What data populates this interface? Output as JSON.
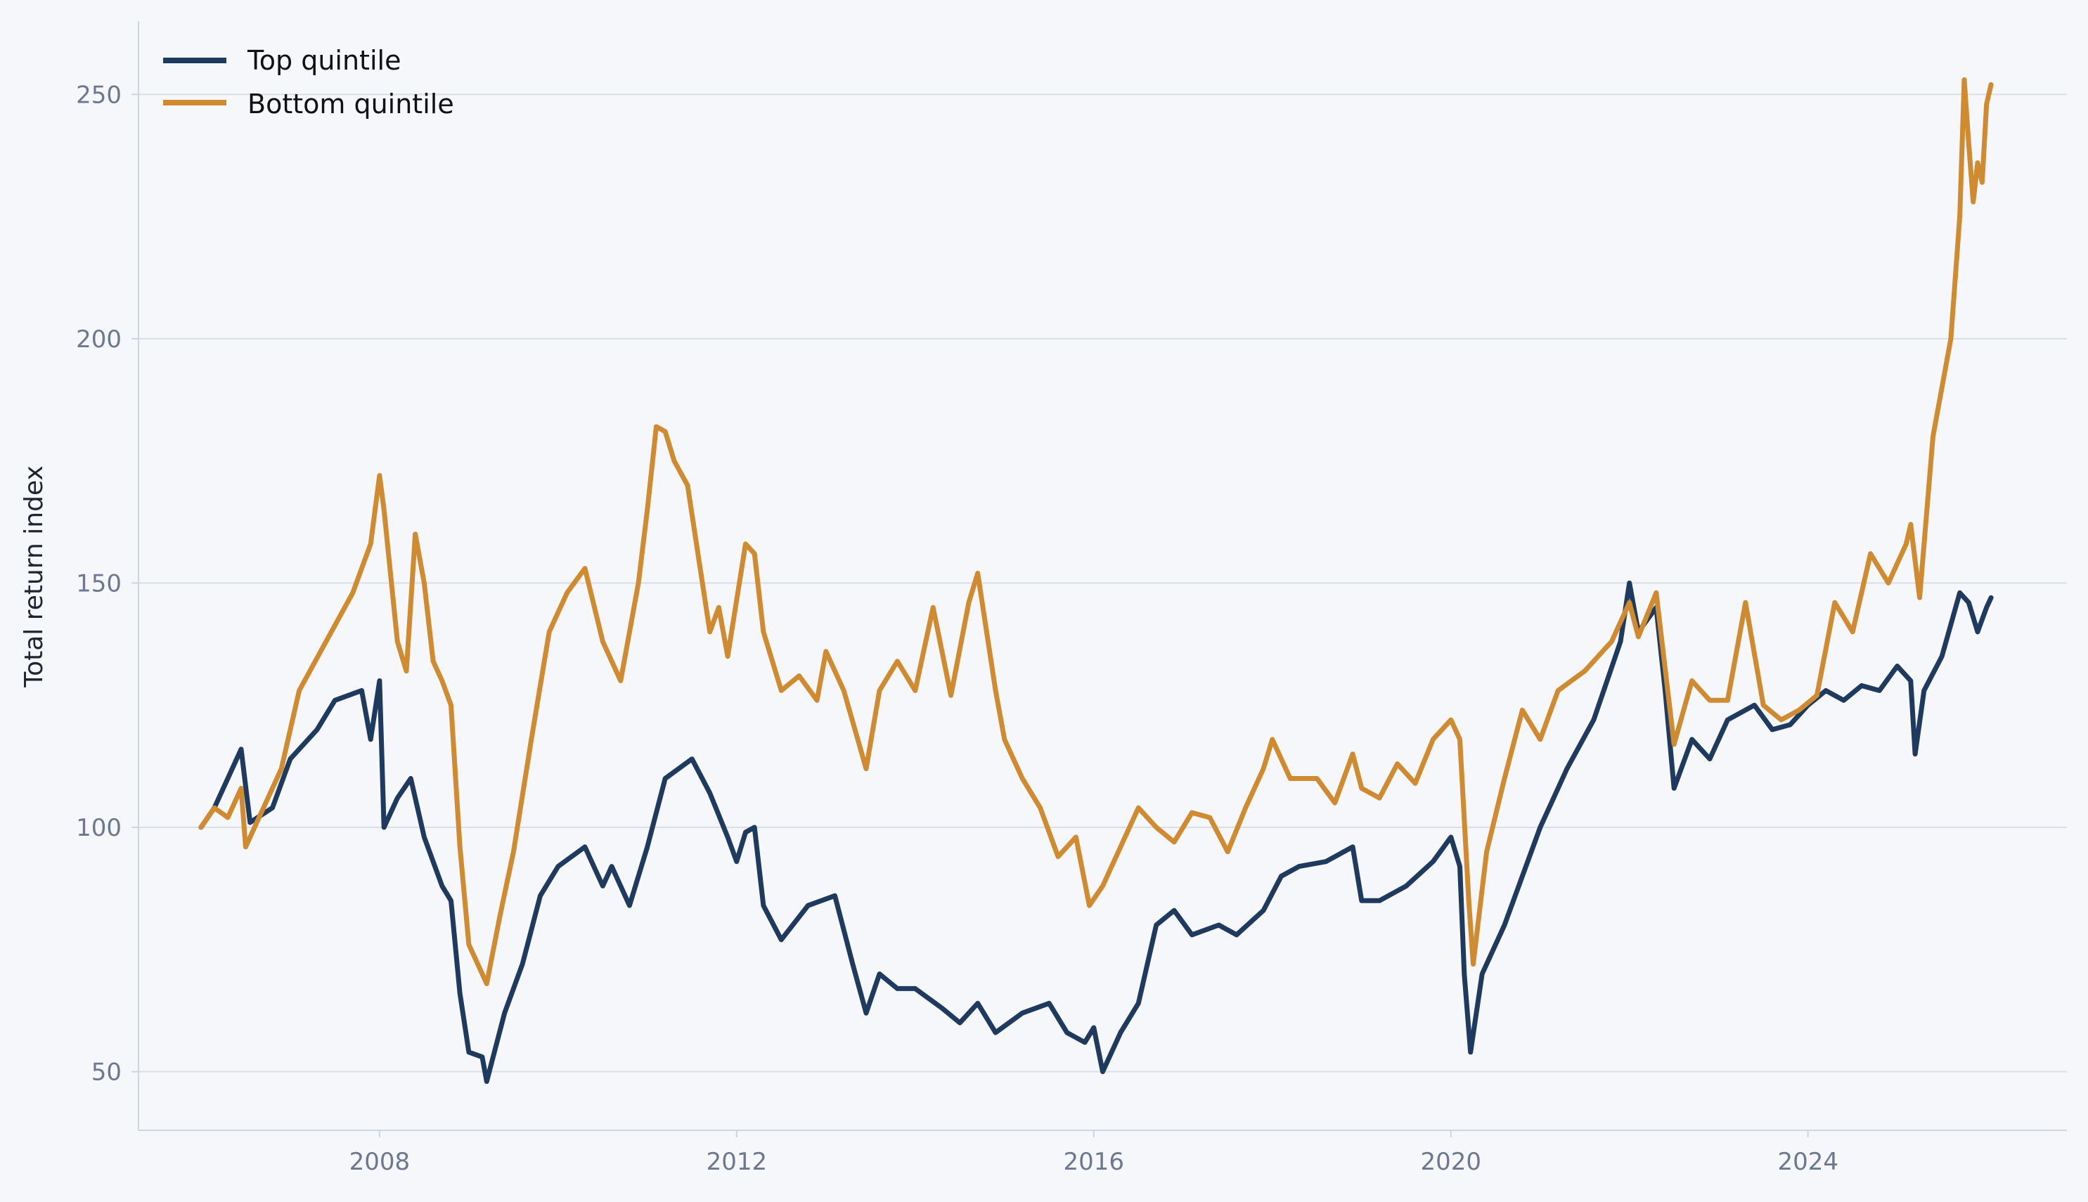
{
  "chart_data": {
    "type": "line",
    "title": "",
    "xlabel": "",
    "ylabel": "Total return index",
    "xlim": [
      2005.3,
      2026.9
    ],
    "ylim": [
      38,
      265
    ],
    "x_ticks": [
      2008,
      2012,
      2016,
      2020,
      2024
    ],
    "x_tick_labels": [
      "2008",
      "2012",
      "2016",
      "2020",
      "2024"
    ],
    "y_ticks": [
      50,
      100,
      150,
      200,
      250
    ],
    "y_tick_labels": [
      "50",
      "100",
      "150",
      "200",
      "250"
    ],
    "grid": "horizontal",
    "legend": "top-left",
    "series": [
      {
        "name": "Top quintile",
        "color": "#1f3a5f",
        "points": [
          [
            2006.0,
            100
          ],
          [
            2006.15,
            104
          ],
          [
            2006.3,
            110
          ],
          [
            2006.45,
            116
          ],
          [
            2006.55,
            101
          ],
          [
            2006.8,
            104
          ],
          [
            2007.0,
            114
          ],
          [
            2007.3,
            120
          ],
          [
            2007.5,
            126
          ],
          [
            2007.8,
            128
          ],
          [
            2007.9,
            118
          ],
          [
            2008.0,
            130
          ],
          [
            2008.05,
            100
          ],
          [
            2008.2,
            106
          ],
          [
            2008.35,
            110
          ],
          [
            2008.5,
            98
          ],
          [
            2008.7,
            88
          ],
          [
            2008.8,
            85
          ],
          [
            2008.9,
            66
          ],
          [
            2009.0,
            54
          ],
          [
            2009.15,
            53
          ],
          [
            2009.2,
            48
          ],
          [
            2009.4,
            62
          ],
          [
            2009.6,
            72
          ],
          [
            2009.8,
            86
          ],
          [
            2010.0,
            92
          ],
          [
            2010.3,
            96
          ],
          [
            2010.5,
            88
          ],
          [
            2010.6,
            92
          ],
          [
            2010.8,
            84
          ],
          [
            2011.0,
            96
          ],
          [
            2011.2,
            110
          ],
          [
            2011.5,
            114
          ],
          [
            2011.7,
            107
          ],
          [
            2011.9,
            98
          ],
          [
            2012.0,
            93
          ],
          [
            2012.1,
            99
          ],
          [
            2012.2,
            100
          ],
          [
            2012.3,
            84
          ],
          [
            2012.5,
            77
          ],
          [
            2012.8,
            84
          ],
          [
            2013.1,
            86
          ],
          [
            2013.3,
            72
          ],
          [
            2013.45,
            62
          ],
          [
            2013.6,
            70
          ],
          [
            2013.8,
            67
          ],
          [
            2014.0,
            67
          ],
          [
            2014.3,
            63
          ],
          [
            2014.5,
            60
          ],
          [
            2014.7,
            64
          ],
          [
            2014.9,
            58
          ],
          [
            2015.2,
            62
          ],
          [
            2015.5,
            64
          ],
          [
            2015.7,
            58
          ],
          [
            2015.9,
            56
          ],
          [
            2016.0,
            59
          ],
          [
            2016.1,
            50
          ],
          [
            2016.3,
            58
          ],
          [
            2016.5,
            64
          ],
          [
            2016.7,
            80
          ],
          [
            2016.9,
            83
          ],
          [
            2017.1,
            78
          ],
          [
            2017.4,
            80
          ],
          [
            2017.6,
            78
          ],
          [
            2017.9,
            83
          ],
          [
            2018.1,
            90
          ],
          [
            2018.3,
            92
          ],
          [
            2018.6,
            93
          ],
          [
            2018.9,
            96
          ],
          [
            2019.0,
            85
          ],
          [
            2019.2,
            85
          ],
          [
            2019.5,
            88
          ],
          [
            2019.8,
            93
          ],
          [
            2020.0,
            98
          ],
          [
            2020.1,
            92
          ],
          [
            2020.15,
            70
          ],
          [
            2020.22,
            54
          ],
          [
            2020.35,
            70
          ],
          [
            2020.6,
            80
          ],
          [
            2020.8,
            90
          ],
          [
            2021.0,
            100
          ],
          [
            2021.3,
            112
          ],
          [
            2021.6,
            122
          ],
          [
            2021.9,
            138
          ],
          [
            2022.0,
            150
          ],
          [
            2022.1,
            140
          ],
          [
            2022.3,
            145
          ],
          [
            2022.4,
            128
          ],
          [
            2022.5,
            108
          ],
          [
            2022.7,
            118
          ],
          [
            2022.9,
            114
          ],
          [
            2023.1,
            122
          ],
          [
            2023.4,
            125
          ],
          [
            2023.6,
            120
          ],
          [
            2023.8,
            121
          ],
          [
            2024.0,
            125
          ],
          [
            2024.2,
            128
          ],
          [
            2024.4,
            126
          ],
          [
            2024.6,
            129
          ],
          [
            2024.8,
            128
          ],
          [
            2025.0,
            133
          ],
          [
            2025.15,
            130
          ],
          [
            2025.2,
            115
          ],
          [
            2025.3,
            128
          ],
          [
            2025.5,
            135
          ],
          [
            2025.7,
            148
          ],
          [
            2025.8,
            146
          ],
          [
            2025.9,
            140
          ],
          [
            2026.0,
            145
          ],
          [
            2026.05,
            147
          ]
        ]
      },
      {
        "name": "Bottom quintile",
        "color": "#d08a30",
        "points": [
          [
            2006.0,
            100
          ],
          [
            2006.15,
            104
          ],
          [
            2006.3,
            102
          ],
          [
            2006.45,
            108
          ],
          [
            2006.5,
            96
          ],
          [
            2006.7,
            104
          ],
          [
            2006.9,
            112
          ],
          [
            2007.1,
            128
          ],
          [
            2007.4,
            138
          ],
          [
            2007.7,
            148
          ],
          [
            2007.9,
            158
          ],
          [
            2008.0,
            172
          ],
          [
            2008.05,
            165
          ],
          [
            2008.2,
            138
          ],
          [
            2008.3,
            132
          ],
          [
            2008.4,
            160
          ],
          [
            2008.5,
            150
          ],
          [
            2008.6,
            134
          ],
          [
            2008.7,
            130
          ],
          [
            2008.8,
            125
          ],
          [
            2008.9,
            96
          ],
          [
            2009.0,
            76
          ],
          [
            2009.1,
            72
          ],
          [
            2009.2,
            68
          ],
          [
            2009.35,
            82
          ],
          [
            2009.5,
            95
          ],
          [
            2009.7,
            118
          ],
          [
            2009.9,
            140
          ],
          [
            2010.1,
            148
          ],
          [
            2010.3,
            153
          ],
          [
            2010.5,
            138
          ],
          [
            2010.7,
            130
          ],
          [
            2010.9,
            150
          ],
          [
            2011.0,
            165
          ],
          [
            2011.1,
            182
          ],
          [
            2011.2,
            181
          ],
          [
            2011.3,
            175
          ],
          [
            2011.45,
            170
          ],
          [
            2011.6,
            152
          ],
          [
            2011.7,
            140
          ],
          [
            2011.8,
            145
          ],
          [
            2011.9,
            135
          ],
          [
            2012.1,
            158
          ],
          [
            2012.2,
            156
          ],
          [
            2012.3,
            140
          ],
          [
            2012.5,
            128
          ],
          [
            2012.7,
            131
          ],
          [
            2012.9,
            126
          ],
          [
            2013.0,
            136
          ],
          [
            2013.2,
            128
          ],
          [
            2013.45,
            112
          ],
          [
            2013.6,
            128
          ],
          [
            2013.8,
            134
          ],
          [
            2014.0,
            128
          ],
          [
            2014.2,
            145
          ],
          [
            2014.4,
            127
          ],
          [
            2014.6,
            146
          ],
          [
            2014.7,
            152
          ],
          [
            2014.9,
            128
          ],
          [
            2015.0,
            118
          ],
          [
            2015.2,
            110
          ],
          [
            2015.4,
            104
          ],
          [
            2015.6,
            94
          ],
          [
            2015.8,
            98
          ],
          [
            2015.95,
            84
          ],
          [
            2016.1,
            88
          ],
          [
            2016.3,
            96
          ],
          [
            2016.5,
            104
          ],
          [
            2016.7,
            100
          ],
          [
            2016.9,
            97
          ],
          [
            2017.1,
            103
          ],
          [
            2017.3,
            102
          ],
          [
            2017.5,
            95
          ],
          [
            2017.7,
            104
          ],
          [
            2017.9,
            112
          ],
          [
            2018.0,
            118
          ],
          [
            2018.2,
            110
          ],
          [
            2018.5,
            110
          ],
          [
            2018.7,
            105
          ],
          [
            2018.9,
            115
          ],
          [
            2019.0,
            108
          ],
          [
            2019.2,
            106
          ],
          [
            2019.4,
            113
          ],
          [
            2019.6,
            109
          ],
          [
            2019.8,
            118
          ],
          [
            2020.0,
            122
          ],
          [
            2020.1,
            118
          ],
          [
            2020.2,
            85
          ],
          [
            2020.25,
            72
          ],
          [
            2020.4,
            95
          ],
          [
            2020.6,
            110
          ],
          [
            2020.8,
            124
          ],
          [
            2021.0,
            118
          ],
          [
            2021.2,
            128
          ],
          [
            2021.5,
            132
          ],
          [
            2021.8,
            138
          ],
          [
            2022.0,
            146
          ],
          [
            2022.1,
            139
          ],
          [
            2022.3,
            148
          ],
          [
            2022.5,
            117
          ],
          [
            2022.7,
            130
          ],
          [
            2022.9,
            126
          ],
          [
            2023.1,
            126
          ],
          [
            2023.3,
            146
          ],
          [
            2023.5,
            125
          ],
          [
            2023.7,
            122
          ],
          [
            2023.9,
            124
          ],
          [
            2024.1,
            127
          ],
          [
            2024.3,
            146
          ],
          [
            2024.5,
            140
          ],
          [
            2024.7,
            156
          ],
          [
            2024.9,
            150
          ],
          [
            2025.1,
            158
          ],
          [
            2025.15,
            162
          ],
          [
            2025.25,
            147
          ],
          [
            2025.4,
            180
          ],
          [
            2025.6,
            200
          ],
          [
            2025.7,
            225
          ],
          [
            2025.75,
            253
          ],
          [
            2025.8,
            240
          ],
          [
            2025.85,
            228
          ],
          [
            2025.9,
            236
          ],
          [
            2025.95,
            232
          ],
          [
            2026.0,
            248
          ],
          [
            2026.05,
            252
          ]
        ]
      }
    ]
  }
}
